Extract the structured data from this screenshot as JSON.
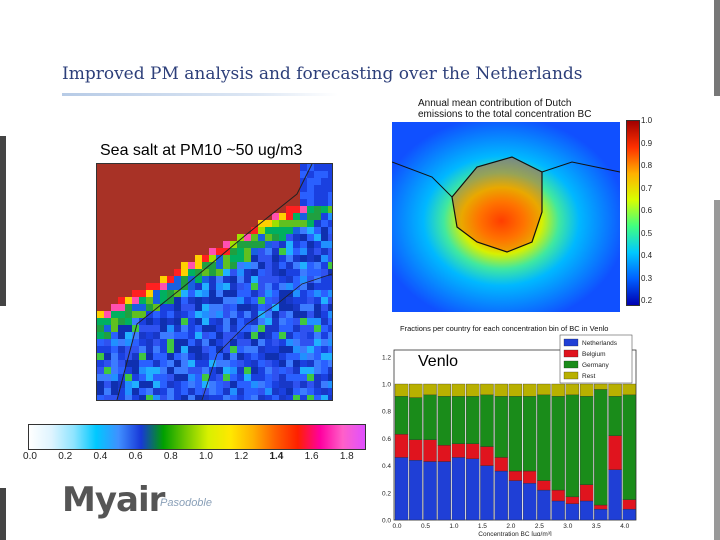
{
  "slide": {
    "title": "Improved PM analysis and forecasting over the Netherlands"
  },
  "seasalt": {
    "label": "Sea salt at PM10 ~50 ug/m3",
    "colorbar_ticks": [
      "0.0",
      "0.2",
      "0.4",
      "0.6",
      "0.8",
      "1.0",
      "1.2",
      "1.4",
      "1.6",
      "1.8"
    ],
    "colorbar_colors": [
      "#ffffff",
      "#dff4ff",
      "#8ee4ff",
      "#00c8ff",
      "#4090ff",
      "#1838d8",
      "#00a000",
      "#70c800",
      "#d8f000",
      "#ffe800",
      "#ffb000",
      "#ff6000",
      "#ff2000",
      "#ff00a0",
      "#ff60c8",
      "#e050ff"
    ]
  },
  "annual": {
    "title_line1": "Annual mean contribution of Dutch",
    "title_line2": "emissions to the total concentration BC",
    "colorbar_ticks": [
      "1.0",
      "0.9",
      "0.8",
      "0.7",
      "0.6",
      "0.5",
      "0.4",
      "0.3",
      "0.2"
    ]
  },
  "fractions": {
    "title": "Fractions per country for each concentration bin of BC in Venlo",
    "location_label": "Venlo",
    "xlabel": "Concentration BC [µg/m³]"
  },
  "logo": {
    "name": "Myair",
    "tagline": "Pasodoble"
  },
  "chart_data": [
    {
      "type": "bar",
      "stacked": true,
      "title": "Fractions per country for each concentration bin of BC in Venlo",
      "xlabel": "Concentration BC [µg/m³]",
      "ylabel": "",
      "xlim": [
        0.0,
        4.25
      ],
      "ylim": [
        0.0,
        1.25
      ],
      "x_ticks": [
        "0.0",
        "0.5",
        "1.0",
        "1.5",
        "2.0",
        "2.5",
        "3.0",
        "3.5",
        "4.0"
      ],
      "y_ticks": [
        "0.0",
        "0.2",
        "0.4",
        "0.6",
        "0.8",
        "1.0",
        "1.2"
      ],
      "legend": "top-right",
      "x": [
        0.0,
        0.25,
        0.5,
        0.75,
        1.0,
        1.25,
        1.5,
        1.75,
        2.0,
        2.25,
        2.5,
        2.75,
        3.0,
        3.25,
        3.5,
        3.75,
        4.0
      ],
      "series": [
        {
          "name": "Netherlands",
          "color": "#1f3fd6",
          "values": [
            0.46,
            0.44,
            0.43,
            0.43,
            0.46,
            0.45,
            0.4,
            0.36,
            0.29,
            0.27,
            0.22,
            0.14,
            0.12,
            0.14,
            0.08,
            0.37,
            0.08
          ]
        },
        {
          "name": "Belgium",
          "color": "#e0141e",
          "values": [
            0.17,
            0.15,
            0.16,
            0.12,
            0.1,
            0.11,
            0.14,
            0.1,
            0.07,
            0.09,
            0.07,
            0.08,
            0.05,
            0.12,
            0.03,
            0.25,
            0.07
          ]
        },
        {
          "name": "Germany",
          "color": "#1a8c1a",
          "values": [
            0.28,
            0.31,
            0.33,
            0.36,
            0.35,
            0.35,
            0.38,
            0.45,
            0.55,
            0.55,
            0.63,
            0.69,
            0.75,
            0.65,
            0.85,
            0.29,
            0.77
          ]
        },
        {
          "name": "Rest",
          "color": "#b8b000",
          "values": [
            0.09,
            0.1,
            0.08,
            0.09,
            0.09,
            0.09,
            0.08,
            0.09,
            0.09,
            0.09,
            0.08,
            0.09,
            0.08,
            0.09,
            0.04,
            0.09,
            0.08
          ]
        }
      ]
    },
    {
      "type": "heatmap",
      "title": "Annual mean contribution of Dutch emissions to the total concentration BC",
      "colorbar_range": [
        0.2,
        1.0
      ],
      "colorbar_ticks": [
        1.0,
        0.9,
        0.8,
        0.7,
        0.6,
        0.5,
        0.4,
        0.3,
        0.2
      ]
    },
    {
      "type": "heatmap",
      "title": "Sea salt at PM10 ~50 ug/m3",
      "colorbar_range": [
        0.0,
        1.8
      ],
      "colorbar_ticks": [
        0.0,
        0.2,
        0.4,
        0.6,
        0.8,
        1.0,
        1.2,
        1.4,
        1.6,
        1.8
      ]
    }
  ]
}
